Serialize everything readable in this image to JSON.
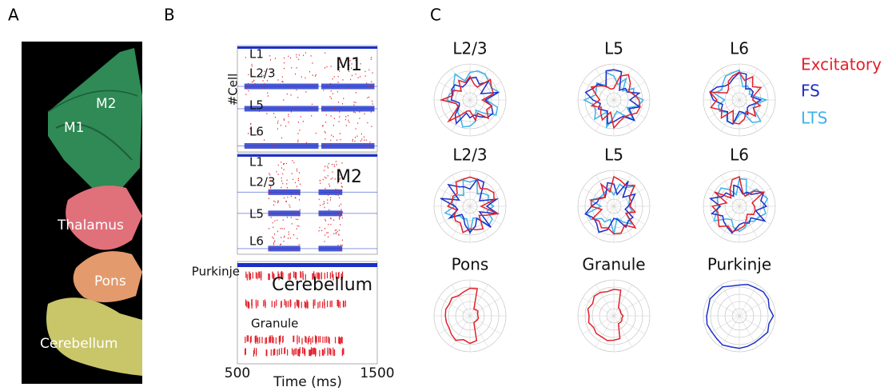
{
  "panels": {
    "A": {
      "label": "A",
      "regions": [
        "M2",
        "M1",
        "Thalamus",
        "Pons",
        "Cerebellum"
      ]
    },
    "B": {
      "label": "B",
      "y_label": "#Cell",
      "x_label": "Time (ms)",
      "x_ticks": [
        500,
        1500
      ],
      "blocks": [
        {
          "title": "M1",
          "layers": [
            "L1",
            "L2/3",
            "L5",
            "L6"
          ]
        },
        {
          "title": "M2",
          "layers": [
            "L1",
            "L2/3",
            "L5",
            "L6"
          ]
        },
        {
          "title": "Cerebellum",
          "layers": [
            "Purkinje",
            "Granule"
          ]
        }
      ]
    },
    "C": {
      "label": "C",
      "legend": [
        {
          "name": "Excitatory",
          "color": "#e3202b"
        },
        {
          "name": "FS",
          "color": "#1a2fc9"
        },
        {
          "name": "LTS",
          "color": "#3fb2ea"
        }
      ],
      "plots": [
        {
          "title": "L2/3"
        },
        {
          "title": "L5"
        },
        {
          "title": "L6"
        },
        {
          "title": "L2/3"
        },
        {
          "title": "L5"
        },
        {
          "title": "L6"
        },
        {
          "title": "Pons"
        },
        {
          "title": "Granule"
        },
        {
          "title": "Purkinje"
        }
      ]
    }
  }
}
